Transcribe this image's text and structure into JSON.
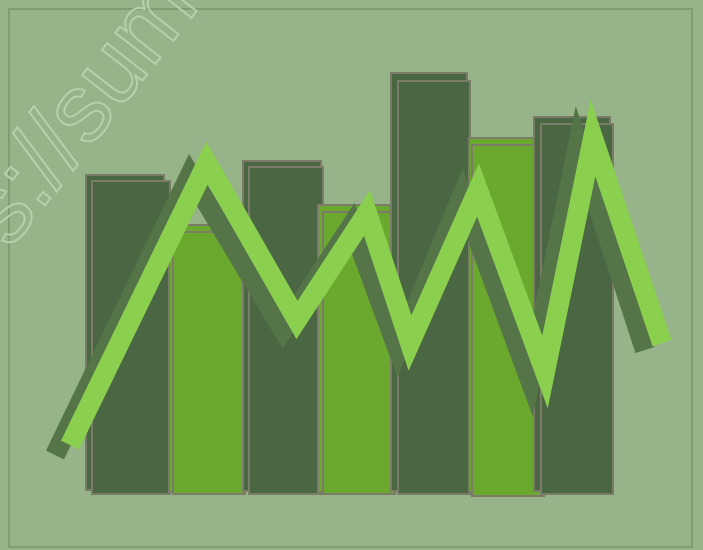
{
  "illustration": {
    "name": "bar-and-zigzag-line-icon",
    "colors": {
      "background": "#97b38a",
      "frame": "#7f9d72",
      "bar_dark": "#4a6642",
      "bar_light": "#6aa92d",
      "bar_outline": "#7b7b6a",
      "line_shadow": "#557448",
      "line": "#8ad04e",
      "watermark": "#b8cfae"
    },
    "watermark_text": "s://sume"
  }
}
